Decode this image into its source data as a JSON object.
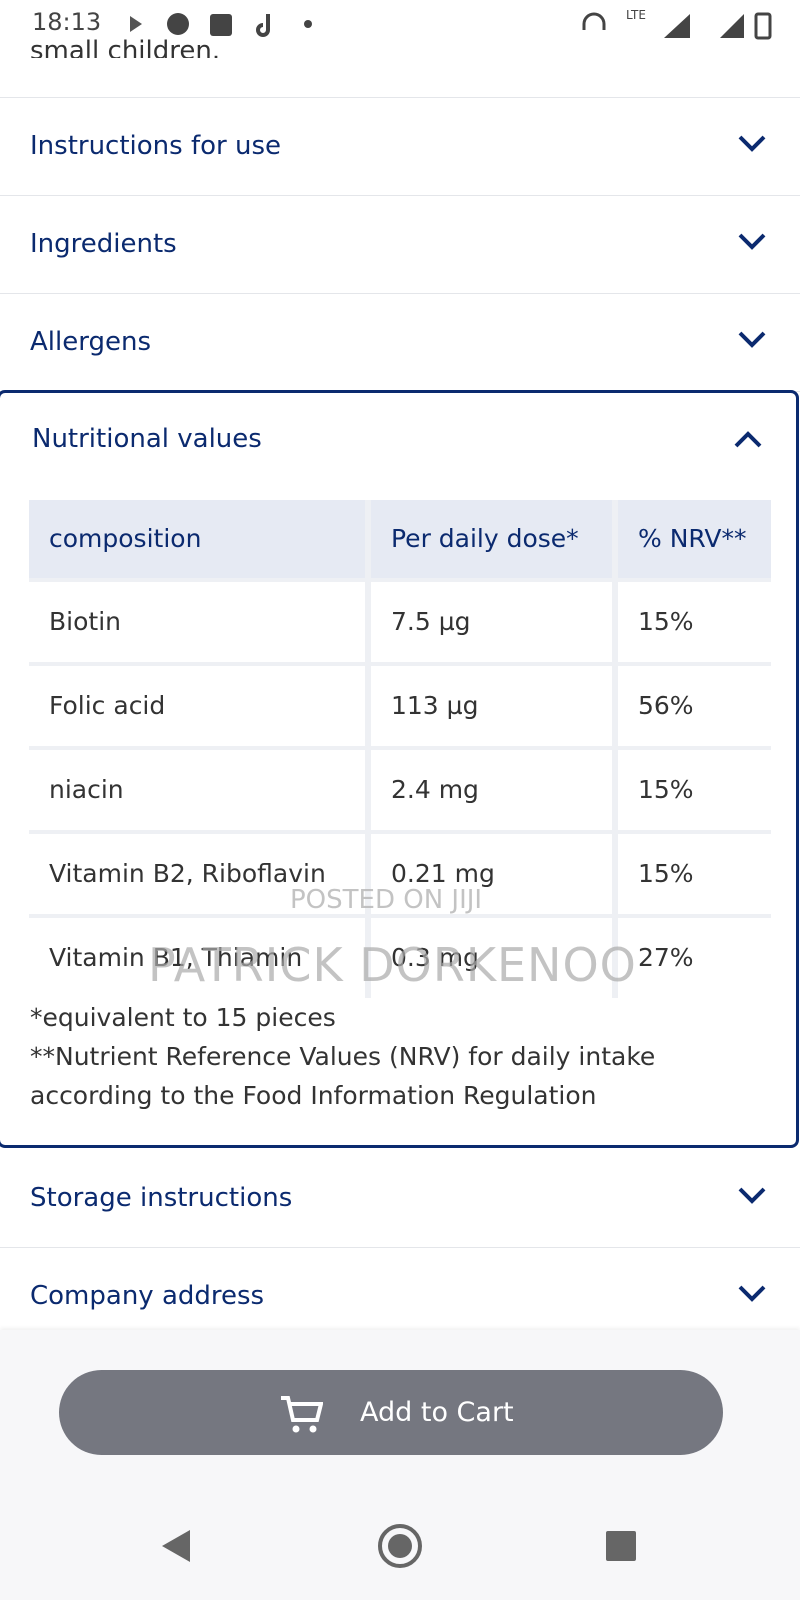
{
  "status_bar": {
    "time": "18:13",
    "network": "LTE"
  },
  "partial_text": "small children.",
  "sections_before": [
    "Instructions for use",
    "Ingredients",
    "Allergens"
  ],
  "open_section": {
    "title": "Nutritional values",
    "table": {
      "header": [
        "composition",
        "Per daily dose*",
        "% NRV**"
      ],
      "rows": [
        [
          "Biotin",
          "7.5 µg",
          "15%"
        ],
        [
          "Folic acid",
          "113 µg",
          "56%"
        ],
        [
          "niacin",
          "2.4 mg",
          "15%"
        ],
        [
          "Vitamin B2, Riboflavin",
          "0.21 mg",
          "15%"
        ],
        [
          "Vitamin B1, Thiamin",
          "0.3 mg",
          "27%"
        ]
      ]
    },
    "footnotes": [
      "*equivalent to 15 pieces",
      "**Nutrient Reference Values (NRV) for daily intake",
      "according to the Food Information Regulation"
    ]
  },
  "sections_after": [
    "Storage instructions",
    "Company address"
  ],
  "button": "Add to Cart",
  "watermark": {
    "small": "POSTED ON JIJI",
    "large": "PATRICK DORKENOO"
  }
}
